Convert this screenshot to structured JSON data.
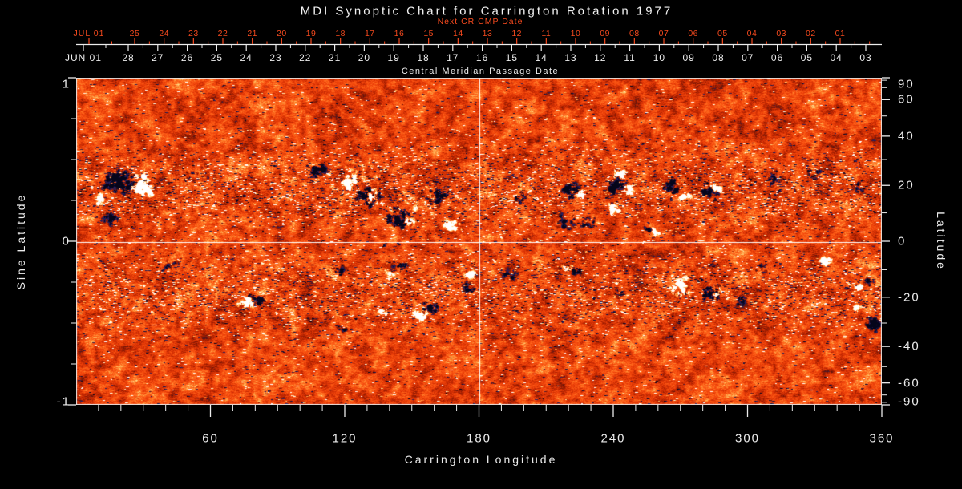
{
  "labels": {
    "title": "MDI Synoptic Chart for Carrington Rotation 1977",
    "next_cr": "Next CR CMP Date",
    "cmp": "Central Meridian Passage Date",
    "xlabel": "Carrington Longitude",
    "left_ylabel": "Sine Latitude",
    "right_ylabel": "Latitude",
    "jul01": "JUL 01",
    "jun01": "JUN 01"
  },
  "colors": {
    "background": "#000000",
    "axis": "#ececec",
    "red_axis": "#f64a1e",
    "frame": "#e8e8e8",
    "crosshair": "#ffffff"
  },
  "chart_data": {
    "type": "heatmap",
    "title": "MDI Synoptic Chart for Carrington Rotation 1977",
    "xlabel": "Carrington Longitude",
    "ylabel_left": "Sine Latitude",
    "ylabel_right": "Latitude",
    "xlim": [
      0,
      360
    ],
    "ylim_sine": [
      -1,
      1
    ],
    "x_major_ticks": [
      60,
      120,
      180,
      240,
      300,
      360
    ],
    "x_minor_step_deg": 10,
    "sine_major_ticks": [
      "1",
      "0",
      "-1"
    ],
    "sine_minor_step": 0.25,
    "lat_major_ticks": [
      "90",
      "60",
      "40",
      "20",
      "0",
      "-20",
      "-40",
      "-60",
      "-90"
    ],
    "lat_major_values": [
      90,
      60,
      40,
      20,
      0,
      -20,
      -40,
      -60,
      -90
    ],
    "lat_minor_values": [
      80,
      70,
      50,
      30,
      10,
      -10,
      -30,
      -50,
      -70,
      -80
    ],
    "next_cr_days": [
      "25",
      "24",
      "23",
      "22",
      "21",
      "20",
      "19",
      "18",
      "17",
      "16",
      "15",
      "14",
      "13",
      "12",
      "11",
      "10",
      "09",
      "08",
      "07",
      "06",
      "05",
      "04",
      "03",
      "02",
      "01"
    ],
    "cmp_days": [
      "28",
      "27",
      "26",
      "25",
      "24",
      "23",
      "22",
      "21",
      "20",
      "19",
      "18",
      "17",
      "16",
      "15",
      "14",
      "13",
      "12",
      "11",
      "10",
      "09",
      "08",
      "07",
      "06",
      "05",
      "04",
      "03"
    ],
    "crosshair": {
      "longitude_deg": 180,
      "latitude_deg": 0
    },
    "colormap_stops": [
      [
        -1.25,
        "#05051a"
      ],
      [
        -1.0,
        "#10103d"
      ],
      [
        -0.8,
        "#232268"
      ],
      [
        -0.62,
        "#341c55"
      ],
      [
        -0.52,
        "#5c150f"
      ],
      [
        -0.38,
        "#8f1a02"
      ],
      [
        -0.2,
        "#bc2602"
      ],
      [
        -0.05,
        "#d93305"
      ],
      [
        0.1,
        "#ee420a"
      ],
      [
        0.28,
        "#fb5714"
      ],
      [
        0.45,
        "#ff7624"
      ],
      [
        0.6,
        "#ffa046"
      ],
      [
        0.72,
        "#ffc96f"
      ],
      [
        0.85,
        "#ffeab0"
      ],
      [
        1.0,
        "#ffffff"
      ],
      [
        1.15,
        "#ffffff"
      ]
    ],
    "active_regions": [
      [
        55,
        130,
        22,
        16,
        -1,
        70,
        1.6
      ],
      [
        85,
        135,
        16,
        14,
        1,
        55,
        1.7
      ],
      [
        45,
        175,
        18,
        12,
        -1,
        25,
        1.0
      ],
      [
        33,
        151,
        9,
        7,
        1,
        10,
        1.2
      ],
      [
        150,
        120,
        30,
        15,
        -1,
        20,
        0.9
      ],
      [
        300,
        115,
        14,
        10,
        -1,
        30,
        1.4
      ],
      [
        365,
        148,
        20,
        14,
        -1,
        45,
        1.5
      ],
      [
        340,
        130,
        14,
        10,
        1,
        35,
        1.6
      ],
      [
        370,
        150,
        12,
        10,
        1,
        25,
        1.5
      ],
      [
        405,
        175,
        22,
        18,
        -1,
        50,
        1.5
      ],
      [
        415,
        180,
        10,
        8,
        1,
        15,
        1.3
      ],
      [
        450,
        150,
        16,
        14,
        -1,
        30,
        1.4
      ],
      [
        470,
        185,
        12,
        9,
        1,
        18,
        1.4
      ],
      [
        350,
        120,
        40,
        25,
        1,
        55,
        0.7
      ],
      [
        420,
        160,
        40,
        25,
        1,
        50,
        0.7
      ],
      [
        555,
        150,
        10,
        7,
        -1,
        15,
        1.1
      ],
      [
        615,
        140,
        14,
        12,
        -1,
        30,
        1.4
      ],
      [
        610,
        180,
        12,
        9,
        -1,
        18,
        1.2
      ],
      [
        630,
        145,
        8,
        6,
        1,
        10,
        1.4
      ],
      [
        680,
        120,
        9,
        7,
        1,
        14,
        1.7
      ],
      [
        672,
        135,
        12,
        9,
        -1,
        25,
        1.5
      ],
      [
        690,
        140,
        10,
        8,
        1,
        15,
        1.3
      ],
      [
        670,
        165,
        10,
        8,
        1,
        16,
        1.6
      ],
      [
        640,
        180,
        10,
        7,
        -1,
        15,
        1.2
      ],
      [
        715,
        190,
        7,
        5,
        -1,
        9,
        1.3
      ],
      [
        722,
        193,
        6,
        5,
        1,
        8,
        1.4
      ],
      [
        742,
        135,
        12,
        10,
        -1,
        25,
        1.4
      ],
      [
        758,
        148,
        8,
        6,
        1,
        10,
        1.3
      ],
      [
        790,
        140,
        12,
        10,
        -1,
        25,
        1.5
      ],
      [
        800,
        138,
        8,
        7,
        1,
        14,
        1.8
      ],
      [
        870,
        125,
        15,
        10,
        -1,
        15,
        0.9
      ],
      [
        920,
        120,
        10,
        7,
        -1,
        12,
        1.0
      ],
      [
        975,
        135,
        12,
        8,
        -1,
        12,
        0.9
      ],
      [
        115,
        235,
        15,
        10,
        -1,
        15,
        0.9
      ],
      [
        212,
        280,
        10,
        8,
        1,
        16,
        1.7
      ],
      [
        228,
        278,
        10,
        8,
        -1,
        18,
        1.3
      ],
      [
        330,
        240,
        10,
        7,
        -1,
        12,
        1.0
      ],
      [
        332,
        313,
        8,
        6,
        -1,
        8,
        1.0
      ],
      [
        405,
        235,
        12,
        8,
        -1,
        18,
        1.2
      ],
      [
        390,
        245,
        8,
        6,
        1,
        8,
        1.0
      ],
      [
        383,
        293,
        6,
        5,
        1,
        7,
        1.2
      ],
      [
        428,
        298,
        10,
        8,
        1,
        16,
        1.7
      ],
      [
        442,
        288,
        11,
        8,
        -1,
        22,
        1.5
      ],
      [
        492,
        245,
        10,
        7,
        1,
        13,
        1.4
      ],
      [
        490,
        262,
        10,
        7,
        -1,
        14,
        1.2
      ],
      [
        540,
        245,
        12,
        8,
        -1,
        15,
        1.0
      ],
      [
        612,
        238,
        8,
        6,
        1,
        10,
        1.3
      ],
      [
        625,
        243,
        10,
        7,
        -1,
        12,
        1.2
      ],
      [
        680,
        268,
        8,
        6,
        -1,
        8,
        0.9
      ],
      [
        752,
        260,
        16,
        13,
        1,
        32,
        1.5
      ],
      [
        790,
        268,
        14,
        12,
        -1,
        32,
        1.6
      ],
      [
        800,
        265,
        7,
        6,
        1,
        9,
        1.6
      ],
      [
        830,
        280,
        12,
        9,
        -1,
        12,
        1.0
      ],
      [
        855,
        238,
        8,
        8,
        -1,
        10,
        0.9
      ],
      [
        933,
        228,
        8,
        7,
        1,
        12,
        1.8
      ],
      [
        977,
        261,
        5,
        4,
        1,
        6,
        1.5
      ],
      [
        990,
        255,
        10,
        7,
        -1,
        12,
        1.1
      ],
      [
        995,
        308,
        14,
        9,
        -1,
        28,
        1.5
      ],
      [
        975,
        288,
        8,
        6,
        1,
        9,
        1.1
      ]
    ]
  }
}
